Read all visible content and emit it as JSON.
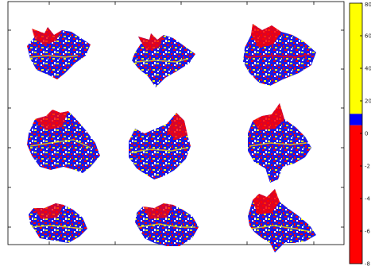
{
  "chart_data": {
    "type": "heatmap",
    "title": "",
    "xlabel": "",
    "ylabel": "",
    "grid": false,
    "panels": {
      "rows": 3,
      "cols": 3,
      "description_units": "leaf-shaped masks filled with speckled colormap values",
      "count": 9
    },
    "colorbar": {
      "position": "right",
      "tick_labels": [
        "80",
        "60",
        "40",
        "20",
        "0",
        "-2",
        "-4",
        "-6",
        "-8"
      ],
      "segments": [
        {
          "from": 12,
          "to": 80,
          "color": "#ffff00"
        },
        {
          "from": 5,
          "to": 12,
          "color": "#0000ff"
        },
        {
          "from": -8,
          "to": 5,
          "color": "#ff0000"
        }
      ]
    },
    "colors": {
      "high": "#ffff00",
      "mid": "#0000ff",
      "low": "#ff0000",
      "axis": "#000000"
    }
  }
}
